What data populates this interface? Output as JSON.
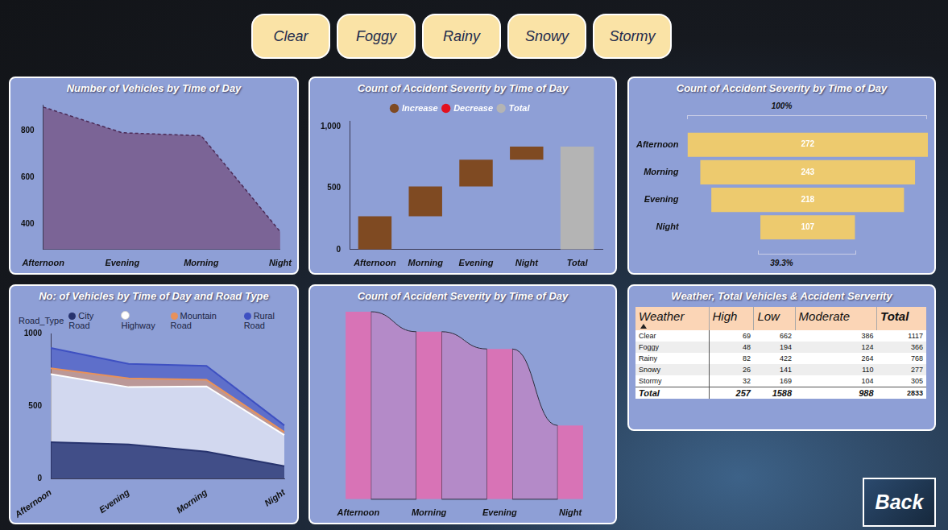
{
  "buttons": [
    "Clear",
    "Foggy",
    "Rainy",
    "Snowy",
    "Stormy"
  ],
  "chart_data": [
    {
      "type": "area",
      "title": "Number of Vehicles by Time of Day",
      "categories": [
        "Afternoon",
        "Evening",
        "Morning",
        "Night"
      ],
      "values": [
        900,
        790,
        777,
        366
      ],
      "color": "#7b6496",
      "line_style": "dashed",
      "ylim": [
        290,
        910
      ],
      "yticks": [
        400,
        600,
        800
      ],
      "grid": false
    },
    {
      "type": "waterfall",
      "title": "Count of Accident Severity by Time of Day",
      "categories": [
        "Afternoon",
        "Morning",
        "Evening",
        "Night",
        "Total"
      ],
      "series": [
        {
          "name": "Increase",
          "color": "#7f4a22",
          "values": [
            272,
            243,
            218,
            107,
            null
          ]
        },
        {
          "name": "Decrease",
          "color": "#e3101e",
          "values": [
            null,
            null,
            null,
            null,
            null
          ]
        },
        {
          "name": "Total",
          "color": "#b4b4b4",
          "values": [
            null,
            null,
            null,
            null,
            840
          ]
        }
      ],
      "ylim": [
        0,
        1050
      ],
      "yticks": [
        0,
        500,
        {
          "value": 1000,
          "label": "1,000"
        }
      ],
      "grid": false,
      "legend": "top"
    },
    {
      "type": "funnel",
      "title": "Count of Accident Severity by Time of Day",
      "categories": [
        "Afternoon",
        "Morning",
        "Evening",
        "Night"
      ],
      "values": [
        272,
        243,
        218,
        107
      ],
      "color": "#edca6e",
      "data_labels": true,
      "annotations": [
        "100%",
        "39.3%"
      ],
      "xlim": [
        -136,
        136
      ],
      "tick_labels": "y"
    },
    {
      "type": "stacked_area",
      "title": "No: of Vehicles by Time of Day and Road Type",
      "legend_title": "Road_Type",
      "categories": [
        "Afternoon",
        "Evening",
        "Morning",
        "Night"
      ],
      "series": [
        {
          "name": "City Road",
          "color": "#27336e",
          "values": [
            250,
            235,
            185,
            85
          ]
        },
        {
          "name": "Highway",
          "color": "#ffffff",
          "values": [
            470,
            395,
            450,
            215
          ]
        },
        {
          "name": "Mountain Road",
          "color": "#e8915a",
          "values": [
            40,
            60,
            45,
            20
          ]
        },
        {
          "name": "Rural Road",
          "color": "#3e50c2",
          "values": [
            140,
            100,
            97,
            46
          ]
        }
      ],
      "stacked": true,
      "ylim": [
        0,
        1000
      ],
      "yticks": [
        0,
        500,
        1000
      ],
      "grid": false,
      "legend": "top-left"
    },
    {
      "type": "ribbon",
      "title": "Count of Accident Severity by Time of Day",
      "categories": [
        "Afternoon",
        "Morning",
        "Evening",
        "Night"
      ],
      "values": [
        272,
        243,
        218,
        107
      ],
      "color": "#d873b6",
      "ylim": [
        0,
        272
      ],
      "tick_labels": "x"
    }
  ],
  "table": {
    "title": "Weather, Total Vehicles & Accident Serverity",
    "columns": [
      "Weather",
      "High",
      "Low",
      "Moderate",
      "Total"
    ],
    "rows": [
      [
        "Clear",
        69,
        662,
        386,
        1117
      ],
      [
        "Foggy",
        48,
        194,
        124,
        366
      ],
      [
        "Rainy",
        82,
        422,
        264,
        768
      ],
      [
        "Snowy",
        26,
        141,
        110,
        277
      ],
      [
        "Stormy",
        32,
        169,
        104,
        305
      ]
    ],
    "total": [
      "Total",
      257,
      1588,
      988,
      2833
    ]
  },
  "back_button": "Back"
}
